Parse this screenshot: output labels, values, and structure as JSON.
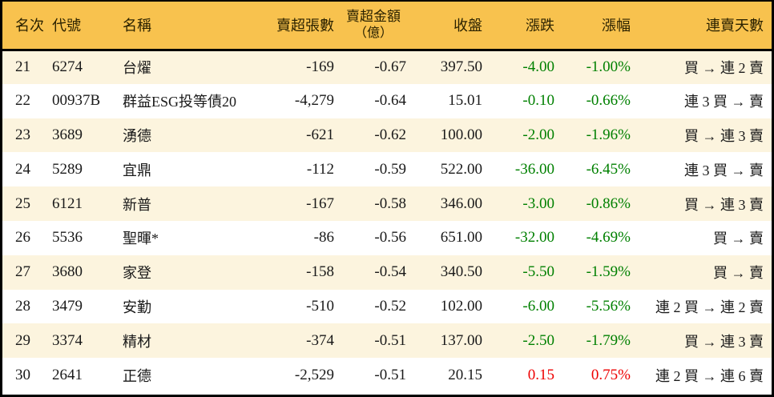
{
  "colors": {
    "header_bg": "#F8C24E",
    "row_alt_bg": "#FCF4DE",
    "decline_text": "#008000",
    "advance_text": "#EE0000",
    "border": "#000000"
  },
  "table": {
    "columns": {
      "rank": "名次",
      "code": "代號",
      "name": "名稱",
      "volume": "賣超張數",
      "amount_line1": "賣超金額",
      "amount_line2": "（億）",
      "close": "收盤",
      "change": "漲跌",
      "pct": "漲幅",
      "streak": "連賣天數"
    },
    "rows": [
      {
        "rank": "21",
        "code": "6274",
        "name": "台燿",
        "volume": "-169",
        "amount": "-0.67",
        "close": "397.50",
        "change": "-4.00",
        "pct": "-1.00%",
        "streak": "買 → 連 2 賣",
        "trend": "down"
      },
      {
        "rank": "22",
        "code": "00937B",
        "name": "群益ESG投等債20",
        "volume": "-4,279",
        "amount": "-0.64",
        "close": "15.01",
        "change": "-0.10",
        "pct": "-0.66%",
        "streak": "連 3 買 → 賣",
        "trend": "down"
      },
      {
        "rank": "23",
        "code": "3689",
        "name": "湧德",
        "volume": "-621",
        "amount": "-0.62",
        "close": "100.00",
        "change": "-2.00",
        "pct": "-1.96%",
        "streak": "買 → 連 3 賣",
        "trend": "down"
      },
      {
        "rank": "24",
        "code": "5289",
        "name": "宜鼎",
        "volume": "-112",
        "amount": "-0.59",
        "close": "522.00",
        "change": "-36.00",
        "pct": "-6.45%",
        "streak": "連 3 買 → 賣",
        "trend": "down"
      },
      {
        "rank": "25",
        "code": "6121",
        "name": "新普",
        "volume": "-167",
        "amount": "-0.58",
        "close": "346.00",
        "change": "-3.00",
        "pct": "-0.86%",
        "streak": "買 → 連 3 賣",
        "trend": "down"
      },
      {
        "rank": "26",
        "code": "5536",
        "name": "聖暉*",
        "volume": "-86",
        "amount": "-0.56",
        "close": "651.00",
        "change": "-32.00",
        "pct": "-4.69%",
        "streak": "買 → 賣",
        "trend": "down"
      },
      {
        "rank": "27",
        "code": "3680",
        "name": "家登",
        "volume": "-158",
        "amount": "-0.54",
        "close": "340.50",
        "change": "-5.50",
        "pct": "-1.59%",
        "streak": "買 → 賣",
        "trend": "down"
      },
      {
        "rank": "28",
        "code": "3479",
        "name": "安勤",
        "volume": "-510",
        "amount": "-0.52",
        "close": "102.00",
        "change": "-6.00",
        "pct": "-5.56%",
        "streak": "連 2 買 → 連 2 賣",
        "trend": "down"
      },
      {
        "rank": "29",
        "code": "3374",
        "name": "精材",
        "volume": "-374",
        "amount": "-0.51",
        "close": "137.00",
        "change": "-2.50",
        "pct": "-1.79%",
        "streak": "買 → 連 3 賣",
        "trend": "down"
      },
      {
        "rank": "30",
        "code": "2641",
        "name": "正德",
        "volume": "-2,529",
        "amount": "-0.51",
        "close": "20.15",
        "change": "0.15",
        "pct": "0.75%",
        "streak": "連 2 買 → 連 6 賣",
        "trend": "up"
      }
    ]
  }
}
